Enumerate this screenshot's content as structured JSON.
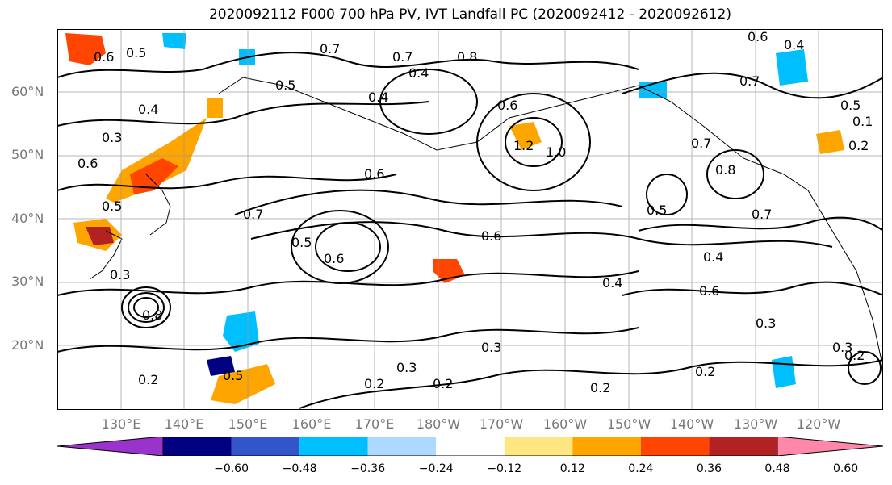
{
  "title": "2020092112 F000 700 hPa PV, IVT Landfall PC (2020092412 - 2020092612)",
  "lat_labels": [
    "60°N",
    "50°N",
    "40°N",
    "30°N",
    "20°N"
  ],
  "lon_labels": [
    "130°E",
    "140°E",
    "150°E",
    "160°E",
    "170°E",
    "180°W",
    "170°W",
    "160°W",
    "150°W",
    "140°W",
    "130°W",
    "120°W"
  ],
  "contour_labels": [
    "0.6",
    "0.5",
    "0.7",
    "0.7",
    "0.4",
    "0.5",
    "0.8",
    "0.4",
    "0.3",
    "0.6",
    "0.6",
    "0.7",
    "0.5",
    "0.6",
    "0.6",
    "0.5",
    "0.4",
    "0.4",
    "0.3",
    "0.2",
    "0.2",
    "0.3",
    "0.2",
    "0.2",
    "0.3",
    "0.8",
    "0.5",
    "1.2",
    "1.0",
    "0.6",
    "0.8",
    "0.7",
    "0.7",
    "0.5",
    "0.4",
    "0.6",
    "0.3",
    "0.2",
    "0.3",
    "0.2",
    "0.2",
    "0.4",
    "0.5",
    "0.6",
    "0.7",
    "0.1"
  ],
  "colorbar": {
    "colors": [
      "#9933cc",
      "#000080",
      "#3355cc",
      "#00bfff",
      "#add8ff",
      "#ffffff",
      "#ffe680",
      "#ffa500",
      "#ff4500",
      "#b22222",
      "#ff88aa"
    ],
    "tick_labels": [
      "-0.60",
      "-0.48",
      "-0.36",
      "-0.24",
      "-0.12",
      "0.12",
      "0.24",
      "0.36",
      "0.48",
      "0.60"
    ],
    "tick_values": [
      -0.6,
      -0.48,
      -0.36,
      -0.24,
      -0.12,
      0.12,
      0.24,
      0.36,
      0.48,
      0.6
    ]
  }
}
